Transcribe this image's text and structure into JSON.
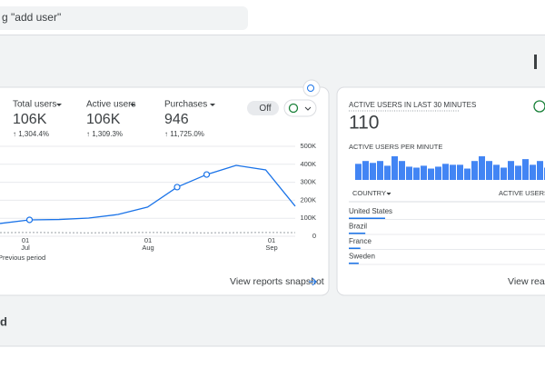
{
  "search": {
    "placeholder": "g \"add user\""
  },
  "overview": {
    "metrics": [
      {
        "label": "Total users",
        "value": "106K",
        "change": "↑ 1,304.4%"
      },
      {
        "label": "Active users",
        "value": "106K",
        "change": "↑ 1,309.3%"
      },
      {
        "label": "Purchases",
        "value": "946",
        "change": "↑ 11,725.0%"
      }
    ],
    "toggle": "Off",
    "chart": {
      "type": "line",
      "ylim": [
        0,
        500000
      ],
      "yticks": [
        0,
        {
          "value": 100000,
          "label": "100K"
        },
        {
          "value": 200000,
          "label": "200K"
        },
        {
          "value": 300000,
          "label": "300K"
        },
        {
          "value": 400000,
          "label": "400K"
        },
        {
          "value": 500000,
          "label": "500K"
        }
      ],
      "x_labels": [
        {
          "day": "01",
          "month": "Jul"
        },
        {
          "day": "01",
          "month": "Aug"
        },
        {
          "day": "01",
          "month": "Sep"
        }
      ],
      "series": [
        {
          "color": "#1a73e8",
          "values": [
            71000,
            91000,
            93000,
            101000,
            121000,
            162000,
            273000,
            343000,
            394000,
            369000,
            167000
          ],
          "highlighted_points": [
            1,
            6,
            7
          ]
        },
        {
          "name": "Previous period",
          "color": "#9aa0a6",
          "dashed": true,
          "values": [
            20000,
            21000,
            20000,
            19000,
            20000,
            21000,
            20000,
            19000,
            20000,
            21000,
            20000
          ]
        }
      ]
    },
    "link": "View reports snapshot"
  },
  "realtime": {
    "title": "ACTIVE USERS IN LAST 30 MINUTES",
    "value": "110",
    "per_minute": {
      "type": "bar",
      "title": "ACTIVE USERS PER MINUTE",
      "color": "#4285f4",
      "values": [
        17,
        20,
        18,
        20,
        15,
        25,
        20,
        14,
        13,
        15,
        12,
        14,
        17,
        16,
        16,
        12,
        20,
        25,
        20,
        16,
        13,
        20,
        15,
        22,
        16,
        20,
        13
      ]
    },
    "table": {
      "headers": [
        "COUNTRY",
        "ACTIVE USERS"
      ],
      "rows": [
        {
          "country": "United States",
          "value": 22
        },
        {
          "country": "Brazil",
          "value": 10
        },
        {
          "country": "France",
          "value": 7
        },
        {
          "country": "Sweden",
          "value": 6
        }
      ]
    },
    "link": "View realti"
  },
  "section": {
    "title": "d"
  }
}
